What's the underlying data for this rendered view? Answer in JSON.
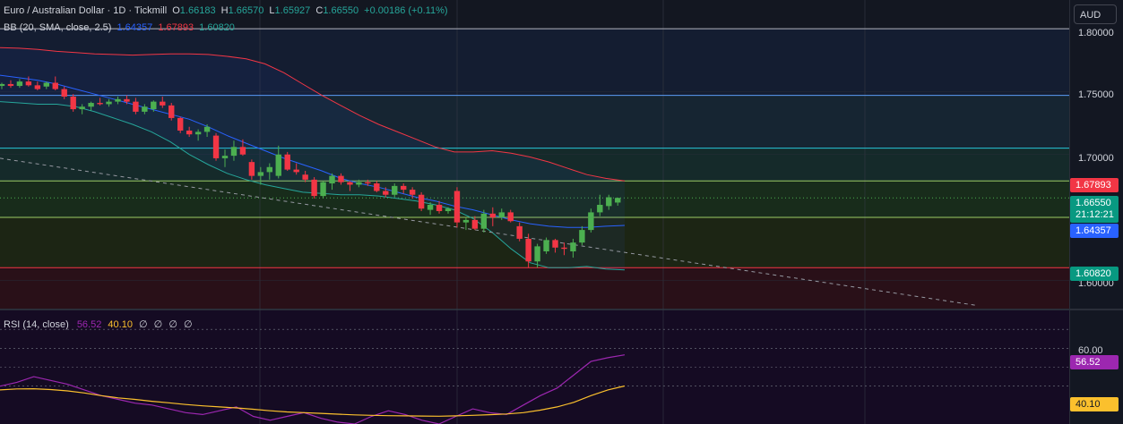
{
  "header": {
    "symbol_line": "Euro / Australian Dollar · 1D · Tickmill",
    "open_label": "O",
    "open": "1.66183",
    "high_label": "H",
    "high": "1.66570",
    "low_label": "L",
    "low": "1.65927",
    "close_label": "C",
    "close": "1.66550",
    "change": "+0.00186 (+0.11%)",
    "bb_label": "BB (20, SMA, close, 2.5)",
    "bb_mid": "1.64357",
    "bb_upper": "1.67893",
    "bb_lower": "1.60820"
  },
  "rsi_header": {
    "label": "RSI (14, close)",
    "rsi": "56.52",
    "ma": "40.10",
    "placeholders": [
      "∅",
      "∅",
      "∅",
      "∅"
    ]
  },
  "axis": {
    "unit": "AUD",
    "price_ticks": [
      "1.80000",
      "1.75000",
      "1.70000",
      "1.60000"
    ],
    "rsi_ticks": [
      "60.00"
    ]
  },
  "price_tags": {
    "upper": "1.67893",
    "last": "1.66550",
    "countdown": "21:12:21",
    "mid": "1.64357",
    "lower": "1.60820",
    "rsi": "56.52",
    "rsi_ma": "40.10"
  },
  "colors": {
    "up": "#4caf50",
    "down": "#f23645",
    "bb_mid": "#2962ff",
    "bb_upper": "#f23645",
    "bb_lower": "#26a69a",
    "rsi": "#9c27b0",
    "rsi_ma": "#fbc02d"
  },
  "chart_data": [
    {
      "type": "candlestick",
      "title": "Euro / Australian Dollar · 1D · Tickmill",
      "ylim": [
        1.5775,
        1.8228
      ],
      "candles": [
        [
          1.7545,
          1.757,
          1.752,
          1.756
        ],
        [
          1.756,
          1.759,
          1.753,
          1.7545
        ],
        [
          1.7545,
          1.76,
          1.753,
          1.758
        ],
        [
          1.758,
          1.762,
          1.754,
          1.755
        ],
        [
          1.755,
          1.758,
          1.751,
          1.752
        ],
        [
          1.754,
          1.758,
          1.752,
          1.757
        ],
        [
          1.757,
          1.762,
          1.751,
          1.752
        ],
        [
          1.752,
          1.754,
          1.744,
          1.746
        ],
        [
          1.746,
          1.748,
          1.734,
          1.736
        ],
        [
          1.736,
          1.74,
          1.732,
          1.738
        ],
        [
          1.738,
          1.742,
          1.735,
          1.741
        ],
        [
          1.741,
          1.745,
          1.739,
          1.74
        ],
        [
          1.74,
          1.744,
          1.738,
          1.742
        ],
        [
          1.742,
          1.746,
          1.74,
          1.744
        ],
        [
          1.744,
          1.747,
          1.74,
          1.742
        ],
        [
          1.742,
          1.745,
          1.732,
          1.734
        ],
        [
          1.734,
          1.74,
          1.732,
          1.738
        ],
        [
          1.736,
          1.743,
          1.734,
          1.742
        ],
        [
          1.742,
          1.746,
          1.737,
          1.739
        ],
        [
          1.739,
          1.741,
          1.727,
          1.729
        ],
        [
          1.729,
          1.73,
          1.717,
          1.719
        ],
        [
          1.719,
          1.722,
          1.714,
          1.716
        ],
        [
          1.716,
          1.72,
          1.711,
          1.718
        ],
        [
          1.718,
          1.724,
          1.714,
          1.722
        ],
        [
          1.715,
          1.717,
          1.695,
          1.697
        ],
        [
          1.697,
          1.704,
          1.69,
          1.699
        ],
        [
          1.699,
          1.711,
          1.695,
          1.706
        ],
        [
          1.706,
          1.712,
          1.699,
          1.7
        ],
        [
          1.694,
          1.696,
          1.68,
          1.683
        ],
        [
          1.683,
          1.69,
          1.676,
          1.686
        ],
        [
          1.686,
          1.693,
          1.68,
          1.69
        ],
        [
          1.683,
          1.707,
          1.681,
          1.7
        ],
        [
          1.7,
          1.702,
          1.687,
          1.688
        ],
        [
          1.688,
          1.693,
          1.684,
          1.686
        ],
        [
          1.684,
          1.687,
          1.678,
          1.68
        ],
        [
          1.68,
          1.682,
          1.665,
          1.667
        ],
        [
          1.667,
          1.679,
          1.665,
          1.678
        ],
        [
          1.677,
          1.685,
          1.672,
          1.683
        ],
        [
          1.683,
          1.685,
          1.676,
          1.678
        ],
        [
          1.678,
          1.679,
          1.671,
          1.676
        ],
        [
          1.676,
          1.68,
          1.674,
          1.678
        ],
        [
          1.678,
          1.68,
          1.675,
          1.677
        ],
        [
          1.677,
          1.679,
          1.67,
          1.671
        ],
        [
          1.671,
          1.674,
          1.666,
          1.668
        ],
        [
          1.668,
          1.677,
          1.666,
          1.675
        ],
        [
          1.675,
          1.677,
          1.669,
          1.672
        ],
        [
          1.672,
          1.674,
          1.665,
          1.668
        ],
        [
          1.668,
          1.67,
          1.655,
          1.657
        ],
        [
          1.656,
          1.662,
          1.652,
          1.66
        ],
        [
          1.66,
          1.663,
          1.653,
          1.655
        ],
        [
          1.655,
          1.658,
          1.653,
          1.657
        ],
        [
          1.671,
          1.674,
          1.642,
          1.646
        ],
        [
          1.646,
          1.65,
          1.64,
          1.648
        ],
        [
          1.648,
          1.651,
          1.64,
          1.641
        ],
        [
          1.641,
          1.656,
          1.638,
          1.653
        ],
        [
          1.653,
          1.658,
          1.643,
          1.65
        ],
        [
          1.65,
          1.657,
          1.648,
          1.654
        ],
        [
          1.654,
          1.656,
          1.646,
          1.647
        ],
        [
          1.643,
          1.646,
          1.631,
          1.633
        ],
        [
          1.633,
          1.637,
          1.61,
          1.615
        ],
        [
          1.615,
          1.629,
          1.61,
          1.627
        ],
        [
          1.623,
          1.634,
          1.621,
          1.632
        ],
        [
          1.632,
          1.633,
          1.622,
          1.626
        ],
        [
          1.626,
          1.63,
          1.62,
          1.625
        ],
        [
          1.623,
          1.633,
          1.618,
          1.63
        ],
        [
          1.63,
          1.643,
          1.628,
          1.64
        ],
        [
          1.64,
          1.657,
          1.638,
          1.654
        ],
        [
          1.654,
          1.668,
          1.651,
          1.66
        ],
        [
          1.659,
          1.668,
          1.656,
          1.666
        ],
        [
          1.6618,
          1.6657,
          1.6593,
          1.6655
        ]
      ],
      "bb_upper": [
        1.785,
        1.7845,
        1.7835,
        1.782,
        1.781,
        1.78,
        1.7795,
        1.779,
        1.7795,
        1.78,
        1.78,
        1.7795,
        1.778,
        1.776,
        1.772,
        1.765,
        1.756,
        1.747,
        1.739,
        1.731,
        1.724,
        1.718,
        1.712,
        1.706,
        1.702,
        1.702,
        1.703,
        1.701,
        1.698,
        1.694,
        1.689,
        1.684,
        1.681,
        1.679
      ],
      "bb_middle": [
        1.763,
        1.761,
        1.759,
        1.756,
        1.752,
        1.748,
        1.744,
        1.74,
        1.736,
        1.732,
        1.728,
        1.722,
        1.715,
        1.709,
        1.703,
        1.697,
        1.692,
        1.687,
        1.681,
        1.677,
        1.674,
        1.67,
        1.666,
        1.663,
        1.659,
        1.656,
        1.652,
        1.648,
        1.645,
        1.643,
        1.642,
        1.642,
        1.643,
        1.6436
      ],
      "bb_lower": [
        1.742,
        1.741,
        1.74,
        1.74,
        1.738,
        1.734,
        1.729,
        1.724,
        1.718,
        1.71,
        1.7,
        1.692,
        1.685,
        1.68,
        1.676,
        1.673,
        1.67,
        1.669,
        1.668,
        1.668,
        1.667,
        1.665,
        1.663,
        1.66,
        1.656,
        1.649,
        1.638,
        1.625,
        1.614,
        1.61,
        1.61,
        1.611,
        1.609,
        1.6082
      ],
      "horizontal_levels": [
        1.8,
        1.747,
        1.705,
        1.679,
        1.65,
        1.61
      ],
      "trendline": [
        [
          0,
          1.697
        ],
        [
          1090,
          1.58
        ]
      ]
    },
    {
      "type": "line",
      "title": "RSI (14, close)",
      "ylim": [
        20,
        80
      ],
      "series": [
        {
          "name": "RSI",
          "values": [
            40,
            42,
            45,
            43,
            41,
            38,
            35,
            33,
            31,
            30,
            28,
            26,
            25,
            27,
            29,
            24,
            22,
            24,
            26,
            23,
            21,
            20,
            24,
            27,
            25,
            22,
            20,
            24,
            28,
            26,
            25,
            30,
            35,
            39,
            46,
            53,
            55,
            56.52
          ]
        },
        {
          "name": "MA",
          "values": [
            38,
            38.5,
            38.6,
            38.2,
            37.5,
            36.4,
            35,
            33.8,
            33,
            32,
            31.2,
            30.3,
            29.6,
            29,
            28.5,
            27.8,
            27,
            26.4,
            26,
            25.6,
            25.2,
            24.8,
            24.6,
            24.4,
            24.3,
            24.2,
            24.1,
            24.3,
            24.6,
            24.9,
            25.3,
            26,
            27.3,
            29,
            31.5,
            35,
            38,
            40.1
          ]
        }
      ]
    }
  ]
}
